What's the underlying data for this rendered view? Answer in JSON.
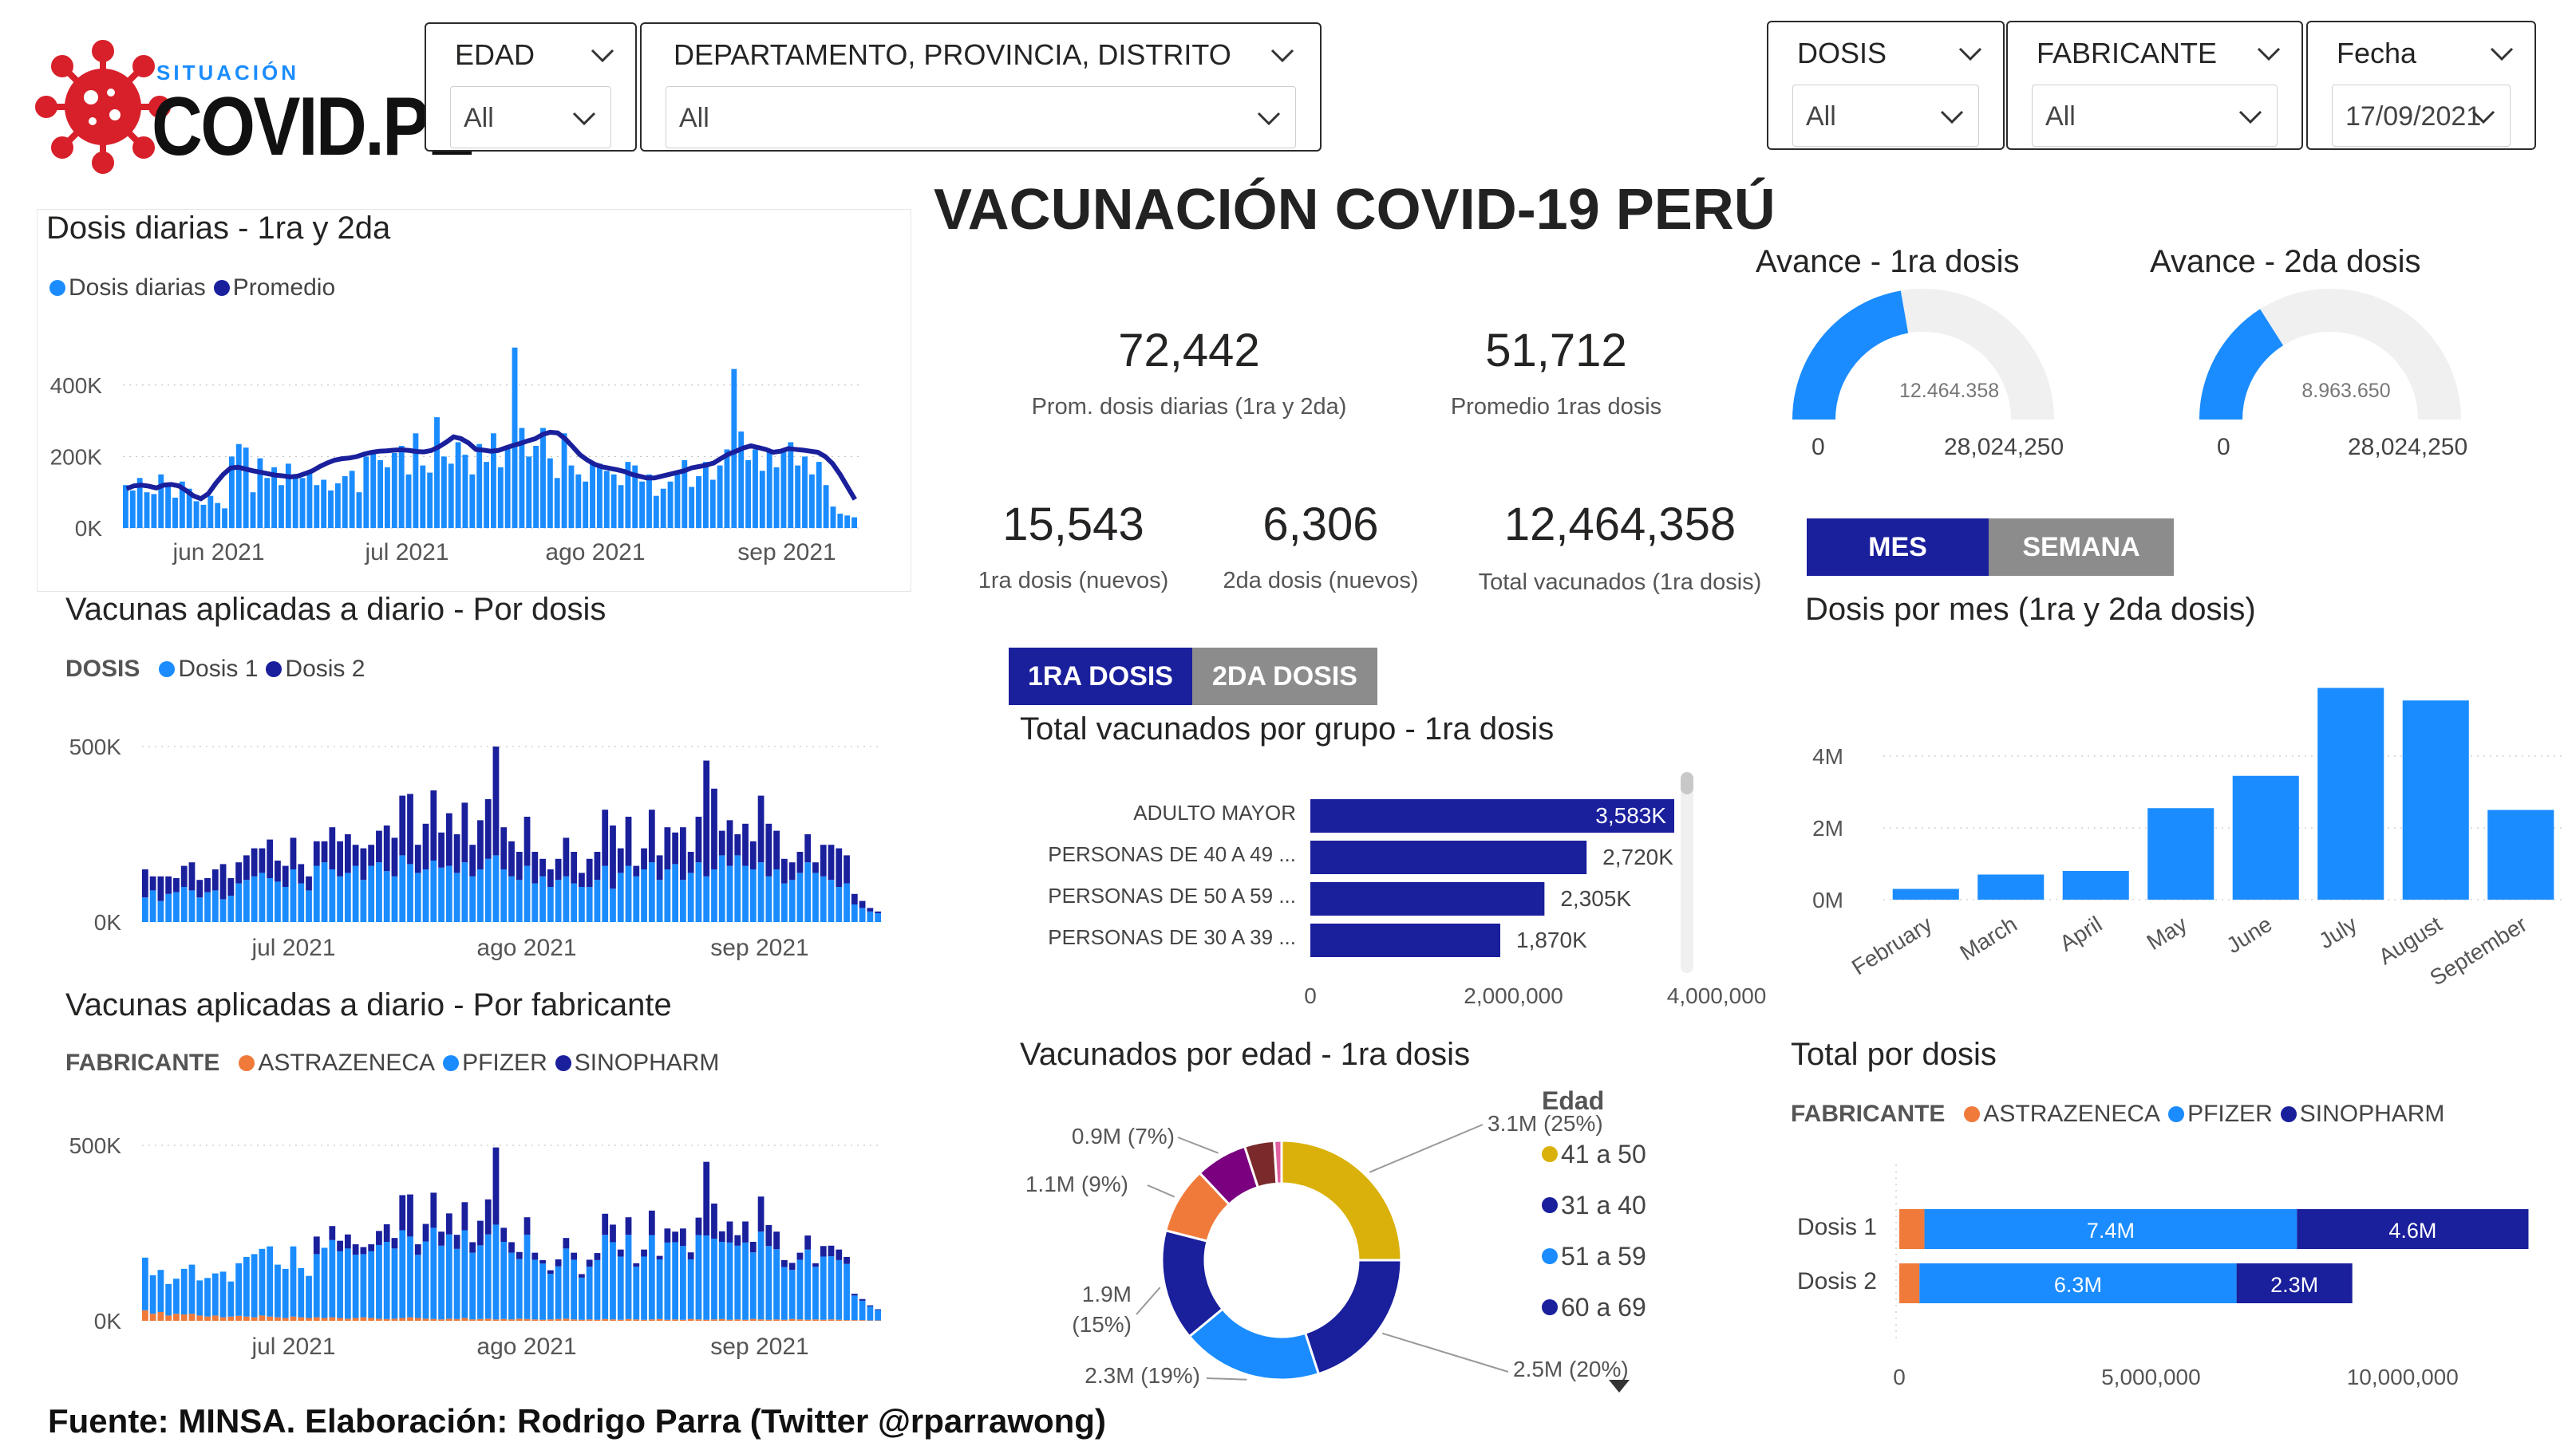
{
  "brand": {
    "small": "SITUACIÓN",
    "big": "COVID.PE"
  },
  "page_title": "VACUNACIÓN COVID-19 PERÚ",
  "filters": {
    "edad": {
      "label": "EDAD",
      "value": "All"
    },
    "region": {
      "label": "DEPARTAMENTO, PROVINCIA, DISTRITO",
      "value": "All"
    },
    "dosis": {
      "label": "DOSIS",
      "value": "All"
    },
    "fabricante": {
      "label": "FABRICANTE",
      "value": "All"
    },
    "fecha": {
      "label": "Fecha",
      "value": "17/09/2021"
    }
  },
  "kpis": [
    {
      "value": "72,442",
      "label": "Prom. dosis diarias (1ra y 2da)"
    },
    {
      "value": "51,712",
      "label": "Promedio 1ras dosis"
    },
    {
      "value": "15,543",
      "label": "1ra dosis (nuevos)"
    },
    {
      "value": "6,306",
      "label": "2da dosis (nuevos)"
    },
    {
      "value": "12,464,358",
      "label": "Total vacunados (1ra dosis)"
    }
  ],
  "gauges": [
    {
      "title": "Avance - 1ra dosis",
      "value_label": "12.464.358",
      "min": "0",
      "max": "28,024,250",
      "fraction": 0.445
    },
    {
      "title": "Avance - 2da dosis",
      "value_label": "8.963.650",
      "min": "0",
      "max": "28,024,250",
      "fraction": 0.32
    }
  ],
  "tabs_month": {
    "active": "MES",
    "inactive": "SEMANA"
  },
  "tabs_dose": {
    "active": "1RA DOSIS",
    "inactive": "2DA DOSIS"
  },
  "colors": {
    "light": "#1a8cff",
    "dark": "#1a1f9c",
    "orange": "#f07a3a",
    "gold": "#dab10a",
    "purple": "#7a0080",
    "brown": "#7a2a2a",
    "pink": "#e060a0",
    "tabActive": "#1a1f9c",
    "tabInactive": "#8c8c8c"
  },
  "footer": "Fuente: MINSA. Elaboración: Rodrigo Parra (Twitter @rparrawong)",
  "chart_data": [
    {
      "id": "daily",
      "type": "bar",
      "title": "Dosis diarias - 1ra y 2da",
      "legend": [
        "Dosis diarias",
        "Promedio"
      ],
      "yticks": [
        "400K",
        "200K",
        "0K"
      ],
      "xticks": [
        "jun 2021",
        "jul 2021",
        "ago 2021",
        "sep 2021"
      ],
      "ylim": [
        0,
        500000
      ],
      "values": [
        120000,
        105000,
        140000,
        100000,
        95000,
        150000,
        115000,
        85000,
        130000,
        110000,
        75000,
        65000,
        90000,
        70000,
        55000,
        200000,
        235000,
        225000,
        100000,
        195000,
        140000,
        170000,
        120000,
        180000,
        150000,
        140000,
        160000,
        120000,
        135000,
        105000,
        125000,
        145000,
        160000,
        100000,
        200000,
        215000,
        190000,
        170000,
        210000,
        230000,
        150000,
        265000,
        175000,
        155000,
        310000,
        200000,
        180000,
        240000,
        205000,
        150000,
        235000,
        185000,
        265000,
        170000,
        230000,
        505000,
        280000,
        200000,
        230000,
        280000,
        195000,
        140000,
        265000,
        175000,
        150000,
        130000,
        185000,
        180000,
        160000,
        150000,
        120000,
        185000,
        175000,
        130000,
        150000,
        90000,
        110000,
        130000,
        150000,
        190000,
        115000,
        145000,
        185000,
        135000,
        175000,
        220000,
        445000,
        270000,
        190000,
        220000,
        160000,
        215000,
        170000,
        220000,
        240000,
        175000,
        200000,
        150000,
        185000,
        120000,
        60000,
        40000,
        35000,
        30000
      ],
      "average": [
        110000,
        118000,
        120000,
        117000,
        112000,
        120000,
        122000,
        118000,
        105000,
        90000,
        82000,
        96000,
        125000,
        150000,
        168000,
        170000,
        165000,
        160000,
        156000,
        152000,
        148000,
        146000,
        143000,
        145000,
        152000,
        160000,
        172000,
        182000,
        190000,
        194000,
        196000,
        200000,
        207000,
        212000,
        215000,
        216000,
        218000,
        219000,
        217000,
        214000,
        213000,
        217000,
        227000,
        240000,
        255000,
        250000,
        238000,
        220000,
        218000,
        215000,
        217000,
        224000,
        231000,
        237000,
        244000,
        250000,
        262000,
        268000,
        266000,
        250000,
        228000,
        205000,
        190000,
        178000,
        171000,
        167000,
        163000,
        158000,
        150000,
        145000,
        140000,
        140000,
        145000,
        150000,
        155000,
        160000,
        168000,
        172000,
        176000,
        182000,
        195000,
        207000,
        215000,
        224000,
        230000,
        225000,
        220000,
        212000,
        215000,
        222000,
        220000,
        218000,
        215000,
        212000,
        200000,
        180000,
        150000,
        115000,
        80000
      ]
    },
    {
      "id": "per-dose",
      "type": "bar",
      "title": "Vacunas aplicadas a diario - Por dosis",
      "legend_label": "DOSIS",
      "legend": [
        "Dosis 1",
        "Dosis 2"
      ],
      "yticks": [
        "500K",
        "0K"
      ],
      "xticks": [
        "jul 2021",
        "ago 2021",
        "sep 2021"
      ],
      "ylim": [
        0,
        500000
      ],
      "series": [
        {
          "name": "Dosis 1",
          "values": [
            70000,
            90000,
            60000,
            80000,
            85000,
            100000,
            90000,
            70000,
            85000,
            90000,
            65000,
            75000,
            110000,
            120000,
            130000,
            140000,
            125000,
            115000,
            100000,
            150000,
            110000,
            90000,
            160000,
            170000,
            150000,
            130000,
            140000,
            160000,
            120000,
            160000,
            170000,
            145000,
            130000,
            190000,
            165000,
            140000,
            150000,
            175000,
            155000,
            160000,
            140000,
            170000,
            130000,
            150000,
            180000,
            190000,
            150000,
            130000,
            120000,
            160000,
            110000,
            130000,
            100000,
            120000,
            130000,
            110000,
            100000,
            100000,
            120000,
            160000,
            95000,
            140000,
            160000,
            130000,
            150000,
            170000,
            120000,
            150000,
            165000,
            120000,
            140000,
            170000,
            130000,
            150000,
            190000,
            160000,
            190000,
            160000,
            150000,
            170000,
            130000,
            150000,
            110000,
            120000,
            140000,
            170000,
            140000,
            130000,
            120000,
            100000,
            110000,
            50000,
            40000,
            30000,
            25000
          ]
        },
        {
          "name": "Dosis 2",
          "values": [
            80000,
            40000,
            70000,
            50000,
            40000,
            60000,
            80000,
            50000,
            40000,
            60000,
            100000,
            50000,
            60000,
            70000,
            80000,
            70000,
            110000,
            60000,
            60000,
            90000,
            55000,
            40000,
            70000,
            60000,
            120000,
            100000,
            110000,
            60000,
            90000,
            60000,
            90000,
            130000,
            110000,
            170000,
            200000,
            80000,
            130000,
            200000,
            100000,
            150000,
            110000,
            170000,
            90000,
            140000,
            170000,
            310000,
            120000,
            100000,
            80000,
            140000,
            90000,
            50000,
            50000,
            60000,
            110000,
            90000,
            40000,
            80000,
            80000,
            160000,
            180000,
            70000,
            140000,
            30000,
            60000,
            150000,
            70000,
            120000,
            90000,
            150000,
            60000,
            130000,
            330000,
            230000,
            70000,
            130000,
            60000,
            120000,
            80000,
            190000,
            150000,
            110000,
            70000,
            50000,
            60000,
            80000,
            30000,
            90000,
            100000,
            110000,
            80000,
            30000,
            20000,
            10000,
            5000
          ]
        }
      ]
    },
    {
      "id": "per-maker",
      "type": "bar",
      "title": "Vacunas aplicadas a diario - Por fabricante",
      "legend_label": "FABRICANTE",
      "legend": [
        "ASTRAZENECA",
        "PFIZER",
        "SINOPHARM"
      ],
      "yticks": [
        "500K",
        "0K"
      ],
      "xticks": [
        "jul 2021",
        "ago 2021",
        "sep 2021"
      ],
      "ylim": [
        0,
        500000
      ],
      "series": [
        {
          "name": "ASTRAZENECA",
          "values": [
            30000,
            20000,
            25000,
            15000,
            20000,
            18000,
            20000,
            15000,
            12000,
            15000,
            10000,
            12000,
            14000,
            12000,
            10000,
            15000,
            12000,
            10000,
            8000,
            12000,
            10000,
            8000,
            10000,
            8000,
            10000,
            8000,
            6000,
            8000,
            10000,
            8000,
            6000,
            5000,
            6000,
            8000,
            10000,
            8000,
            6000,
            5000,
            4000,
            6000,
            5000,
            8000,
            4000,
            5000,
            6000,
            4000,
            5000,
            4000,
            6000,
            5000,
            4000,
            3000,
            4000,
            5000,
            6000,
            4000,
            3000,
            4000,
            3000,
            5000,
            4000,
            3000,
            5000,
            4000,
            3000,
            4000,
            5000,
            3000,
            4000,
            3000,
            5000,
            4000,
            3000,
            4000,
            5000,
            3000,
            4000,
            3000,
            5000,
            4000,
            3000,
            4000,
            3000,
            5000,
            4000,
            3000,
            4000,
            3000,
            4000,
            3000,
            2000,
            2000,
            2000,
            1000,
            1000
          ]
        },
        {
          "name": "PFIZER",
          "values": [
            150000,
            110000,
            120000,
            90000,
            100000,
            130000,
            140000,
            100000,
            110000,
            120000,
            130000,
            100000,
            150000,
            170000,
            180000,
            190000,
            200000,
            150000,
            140000,
            200000,
            140000,
            120000,
            180000,
            200000,
            220000,
            190000,
            200000,
            180000,
            180000,
            190000,
            210000,
            220000,
            200000,
            250000,
            230000,
            180000,
            220000,
            260000,
            210000,
            240000,
            200000,
            250000,
            190000,
            210000,
            240000,
            270000,
            220000,
            190000,
            170000,
            240000,
            170000,
            160000,
            130000,
            150000,
            200000,
            170000,
            120000,
            150000,
            170000,
            240000,
            220000,
            180000,
            240000,
            150000,
            180000,
            240000,
            170000,
            220000,
            220000,
            210000,
            170000,
            240000,
            240000,
            230000,
            220000,
            220000,
            210000,
            220000,
            190000,
            250000,
            210000,
            200000,
            150000,
            140000,
            170000,
            200000,
            150000,
            180000,
            180000,
            170000,
            160000,
            70000,
            55000,
            40000,
            30000
          ]
        },
        {
          "name": "SINOPHARM",
          "values": [
            0,
            0,
            0,
            0,
            0,
            0,
            0,
            0,
            0,
            0,
            0,
            0,
            0,
            0,
            0,
            0,
            0,
            0,
            0,
            0,
            0,
            0,
            50000,
            0,
            40000,
            30000,
            40000,
            30000,
            20000,
            20000,
            40000,
            50000,
            30000,
            100000,
            120000,
            30000,
            50000,
            100000,
            40000,
            60000,
            40000,
            80000,
            30000,
            70000,
            100000,
            220000,
            40000,
            30000,
            20000,
            50000,
            20000,
            10000,
            10000,
            20000,
            30000,
            20000,
            10000,
            20000,
            20000,
            60000,
            50000,
            20000,
            50000,
            10000,
            20000,
            70000,
            10000,
            40000,
            30000,
            50000,
            20000,
            50000,
            210000,
            100000,
            30000,
            60000,
            30000,
            60000,
            30000,
            100000,
            60000,
            50000,
            20000,
            20000,
            20000,
            40000,
            10000,
            30000,
            30000,
            30000,
            20000,
            5000,
            5000,
            3000,
            2000
          ]
        }
      ]
    },
    {
      "id": "by-group",
      "type": "bar",
      "orientation": "horizontal",
      "title": "Total vacunados por grupo - 1ra dosis",
      "categories": [
        "ADULTO MAYOR",
        "PERSONAS DE 40 A 49 ...",
        "PERSONAS DE 50 A 59 ...",
        "PERSONAS DE 30 A 39 ..."
      ],
      "values": [
        3583000,
        2720000,
        2305000,
        1870000
      ],
      "labels": [
        "3,583K",
        "2,720K",
        "2,305K",
        "1,870K"
      ],
      "xticks": [
        "0",
        "2,000,000",
        "4,000,000"
      ],
      "xlim": [
        0,
        4400000
      ]
    },
    {
      "id": "by-age",
      "type": "pie",
      "title": "Vacunados por edad - 1ra dosis",
      "legend_title": "Edad",
      "legend": [
        "41 a 50",
        "31 a 40",
        "51 a 59",
        "60 a 69"
      ],
      "slices": [
        {
          "label": "3.1M (25%)",
          "value": 25,
          "color": "#dab10a"
        },
        {
          "label": "2.5M (20%)",
          "value": 20,
          "color": "#1a1f9c"
        },
        {
          "label": "2.3M (19%)",
          "value": 19,
          "color": "#1a8cff"
        },
        {
          "label": "1.9M (15%)",
          "value": 15,
          "color": "#1a1f9c"
        },
        {
          "label": "1.1M (9%)",
          "value": 9,
          "color": "#f07a3a"
        },
        {
          "label": "0.9M (7%)",
          "value": 7,
          "color": "#7a0080"
        },
        {
          "label": "",
          "value": 4,
          "color": "#7a2a2a"
        },
        {
          "label": "",
          "value": 1,
          "color": "#e060a0"
        }
      ]
    },
    {
      "id": "by-month",
      "type": "bar",
      "title": "Dosis por mes (1ra y 2da dosis)",
      "categories": [
        "February",
        "March",
        "April",
        "May",
        "June",
        "July",
        "August",
        "September"
      ],
      "values": [
        300000,
        700000,
        800000,
        2550000,
        3450000,
        5900000,
        5550000,
        2500000
      ],
      "yticks": [
        "4M",
        "2M",
        "0M"
      ],
      "ylim": [
        0,
        6000000
      ]
    },
    {
      "id": "by-dose",
      "type": "bar",
      "orientation": "horizontal",
      "stacked": true,
      "title": "Total por dosis",
      "legend_label": "FABRICANTE",
      "legend": [
        "ASTRAZENECA",
        "PFIZER",
        "SINOPHARM"
      ],
      "categories": [
        "Dosis 1",
        "Dosis 2"
      ],
      "series": [
        {
          "name": "ASTRAZENECA",
          "values": [
            500000,
            400000
          ],
          "labels": [
            "",
            ""
          ]
        },
        {
          "name": "PFIZER",
          "values": [
            7400000,
            6300000
          ],
          "labels": [
            "7.4M",
            "6.3M"
          ]
        },
        {
          "name": "SINOPHARM",
          "values": [
            4600000,
            2300000
          ],
          "labels": [
            "4.6M",
            "2.3M"
          ]
        }
      ],
      "xticks": [
        "0",
        "5,000,000",
        "10,000,000"
      ],
      "xlim": [
        0,
        13000000
      ]
    }
  ]
}
